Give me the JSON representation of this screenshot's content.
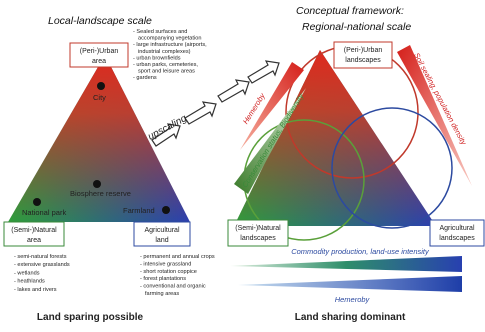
{
  "left": {
    "title": "Local-landscape scale",
    "urban": {
      "label": [
        "(Peri-)Urban",
        "area"
      ],
      "items": [
        "- Sealed surfaces and",
        "accompanying vegetation",
        "- large infrastructure (airports,",
        "industrial complexes)",
        "- urban brownfields",
        "- urban parks, cemeteries,",
        "sport and leisure areas",
        "- gardens"
      ]
    },
    "natural": {
      "label": [
        "(Semi-)Natural",
        "area"
      ],
      "items": [
        "- semi-natural forests",
        "- extensive grasslands",
        "- wetlands",
        "- heathlands",
        "- lakes and rivers"
      ]
    },
    "agricultural": {
      "label": [
        "Agricultural",
        "land"
      ],
      "items": [
        "- permanent and annual crops",
        "- intensive grassland",
        "- short rotation coppice",
        "- forest plantations",
        "- conventional and organic",
        "farming areas"
      ]
    },
    "points": [
      "City",
      "Biosphere reserve",
      "National park",
      "Farmland"
    ],
    "footer": "Land sparing possible"
  },
  "upscaling": "upscaling",
  "right": {
    "title": [
      "Conceptual framework:",
      "Regional-national scale"
    ],
    "urban": [
      "(Peri-)Urban",
      "landscapes"
    ],
    "natural": [
      "(Semi-)Natural",
      "landscapes"
    ],
    "agricultural": [
      "Agricultural",
      "landscapes"
    ],
    "gradients": [
      "Hemeroby",
      "Conservation status, Biodiversity",
      "Soil sealing, population density",
      "Commodity production, land-use intensity",
      "Hemeroby"
    ],
    "footer": "Land sharing dominant"
  }
}
